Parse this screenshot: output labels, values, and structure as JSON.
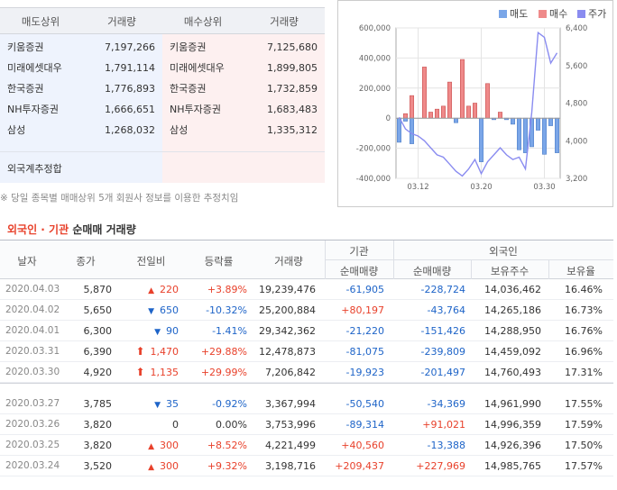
{
  "broker": {
    "headers": [
      "매도상위",
      "거래량",
      "매수상위",
      "거래량"
    ],
    "rows": [
      {
        "sell_name": "키움증권",
        "sell_vol": "7,197,266",
        "buy_name": "키움증권",
        "buy_vol": "7,125,680"
      },
      {
        "sell_name": "미래에셋대우",
        "sell_vol": "1,791,114",
        "buy_name": "미래에셋대우",
        "buy_vol": "1,899,805"
      },
      {
        "sell_name": "한국증권",
        "sell_vol": "1,776,893",
        "buy_name": "한국증권",
        "buy_vol": "1,732,859"
      },
      {
        "sell_name": "NH투자증권",
        "sell_vol": "1,666,651",
        "buy_name": "NH투자증권",
        "buy_vol": "1,683,483"
      },
      {
        "sell_name": "삼성",
        "sell_vol": "1,268,032",
        "buy_name": "삼성",
        "buy_vol": "1,335,312"
      }
    ],
    "foreign_estimate_label": "외국계추정합",
    "note": "※ 당일 종목별 매매상위 5개 회원사 정보를 이용한 추정치임"
  },
  "chart_data": {
    "type": "bar",
    "legend": [
      "매도",
      "매수",
      "주가"
    ],
    "colors": {
      "sell": "#7aa6e8",
      "buy": "#ef8a8a",
      "price": "#8a8cf0"
    },
    "y_left_ticks": [
      "600,000",
      "400,000",
      "200,000",
      "0",
      "-200,000",
      "-400,000"
    ],
    "y_left_range": [
      -400000,
      600000
    ],
    "y_right_ticks": [
      "6,400",
      "5,600",
      "4,800",
      "4,000",
      "3,200"
    ],
    "y_right_range": [
      3200,
      6400
    ],
    "x_ticks": [
      "03.12",
      "03.20",
      "03.30"
    ],
    "buy": [
      0,
      30000,
      150000,
      0,
      340000,
      40000,
      60000,
      80000,
      240000,
      0,
      390000,
      80000,
      100000,
      0,
      230000,
      0,
      40000,
      0,
      0,
      0,
      0,
      0,
      0,
      0,
      0,
      0
    ],
    "sell": [
      -160000,
      -20000,
      -170000,
      0,
      0,
      0,
      0,
      0,
      0,
      -30000,
      0,
      0,
      0,
      -290000,
      0,
      -10000,
      0,
      -10000,
      -40000,
      -210000,
      -230000,
      -190000,
      -80000,
      -240000,
      -50000,
      -230000
    ],
    "price": [
      4500,
      4250,
      4150,
      4100,
      4000,
      3850,
      3700,
      3650,
      3500,
      3350,
      3250,
      3400,
      3600,
      3300,
      3550,
      3700,
      3850,
      3700,
      3600,
      3650,
      3400,
      4600,
      6300,
      6200,
      5650,
      5870
    ]
  },
  "section": {
    "title_a": "외국인",
    "title_sep": " · ",
    "title_b": "기관",
    "title_c": " 순매매 거래량"
  },
  "table": {
    "headers": {
      "date": "날자",
      "close": "종가",
      "change": "전일비",
      "rate": "등락률",
      "volume": "거래량",
      "inst_group": "기관",
      "inst_net": "순매매량",
      "foreign_group": "외국인",
      "foreign_net": "순매매량",
      "foreign_hold": "보유주수",
      "foreign_ratio": "보유율"
    },
    "rows": [
      {
        "date": "2020.04.03",
        "close": "5,870",
        "arrow": "▲",
        "change": "220",
        "dir": "up",
        "rate": "+3.89%",
        "volume": "19,239,476",
        "inst": "-61,905",
        "fnet": "-228,724",
        "fhold": "14,036,462",
        "fratio": "16.46%"
      },
      {
        "date": "2020.04.02",
        "close": "5,650",
        "arrow": "▼",
        "change": "650",
        "dir": "dn",
        "rate": "-10.32%",
        "volume": "25,200,884",
        "inst": "+80,197",
        "fnet": "-43,764",
        "fhold": "14,265,186",
        "fratio": "16.73%"
      },
      {
        "date": "2020.04.01",
        "close": "6,300",
        "arrow": "▼",
        "change": "90",
        "dir": "dn",
        "rate": "-1.41%",
        "volume": "29,342,362",
        "inst": "-21,220",
        "fnet": "-151,426",
        "fhold": "14,288,950",
        "fratio": "16.76%"
      },
      {
        "date": "2020.03.31",
        "close": "6,390",
        "arrow": "⬆",
        "change": "1,470",
        "dir": "up",
        "rate": "+29.88%",
        "volume": "12,478,873",
        "inst": "-81,075",
        "fnet": "-239,809",
        "fhold": "14,459,092",
        "fratio": "16.96%"
      },
      {
        "date": "2020.03.30",
        "close": "4,920",
        "arrow": "⬆",
        "change": "1,135",
        "dir": "up",
        "rate": "+29.99%",
        "volume": "7,206,842",
        "inst": "-19,923",
        "fnet": "-201,497",
        "fhold": "14,760,493",
        "fratio": "17.31%"
      },
      {
        "date": "2020.03.27",
        "close": "3,785",
        "arrow": "▼",
        "change": "35",
        "dir": "dn",
        "rate": "-0.92%",
        "volume": "3,367,994",
        "inst": "-50,540",
        "fnet": "-34,369",
        "fhold": "14,961,990",
        "fratio": "17.55%"
      },
      {
        "date": "2020.03.26",
        "close": "3,820",
        "arrow": "",
        "change": "0",
        "dir": "zero",
        "rate": "0.00%",
        "volume": "3,753,996",
        "inst": "-89,314",
        "fnet": "+91,021",
        "fhold": "14,996,359",
        "fratio": "17.59%"
      },
      {
        "date": "2020.03.25",
        "close": "3,820",
        "arrow": "▲",
        "change": "300",
        "dir": "up",
        "rate": "+8.52%",
        "volume": "4,221,499",
        "inst": "+40,560",
        "fnet": "-13,388",
        "fhold": "14,926,396",
        "fratio": "17.50%"
      },
      {
        "date": "2020.03.24",
        "close": "3,520",
        "arrow": "▲",
        "change": "300",
        "dir": "up",
        "rate": "+9.32%",
        "volume": "3,198,716",
        "inst": "+209,437",
        "fnet": "+227,969",
        "fhold": "14,985,765",
        "fratio": "17.57%"
      }
    ]
  }
}
